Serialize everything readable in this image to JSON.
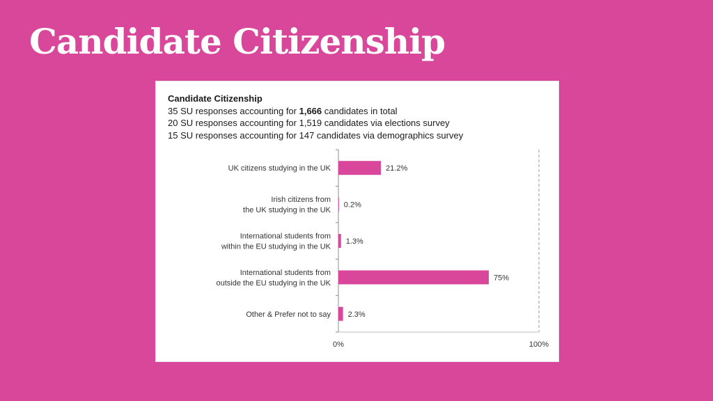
{
  "slide": {
    "title": "Candidate Citizenship"
  },
  "card": {
    "chart_title": "Candidate Citizenship",
    "line1_pre": "35 SU responses accounting for ",
    "line1_bold": "1,666",
    "line1_post": " candidates in total",
    "line2": "20 SU responses accounting for 1,519 candidates via elections survey",
    "line3": "15 SU responses accounting for 147 candidates via demographics survey"
  },
  "colors": {
    "background": "#d9479a",
    "bar": "#d9479a"
  },
  "chart_data": {
    "type": "bar",
    "orientation": "horizontal",
    "title": "Candidate Citizenship",
    "categories": [
      [
        "UK citizens studying in the UK"
      ],
      [
        "Irish citizens from",
        "the UK studying in the UK"
      ],
      [
        "International students from",
        "within the EU studying in the UK"
      ],
      [
        "International students from",
        "outside the EU studying in the UK"
      ],
      [
        "Other & Prefer not to say"
      ]
    ],
    "values": [
      21.2,
      0.2,
      1.3,
      75,
      2.3
    ],
    "value_labels": [
      "21.2%",
      "0.2%",
      "1.3%",
      "75%",
      "2.3%"
    ],
    "xlim": [
      0,
      100
    ],
    "x_tick_labels": [
      "0%",
      "100%"
    ],
    "grid": false,
    "reference_line_at": 100
  }
}
